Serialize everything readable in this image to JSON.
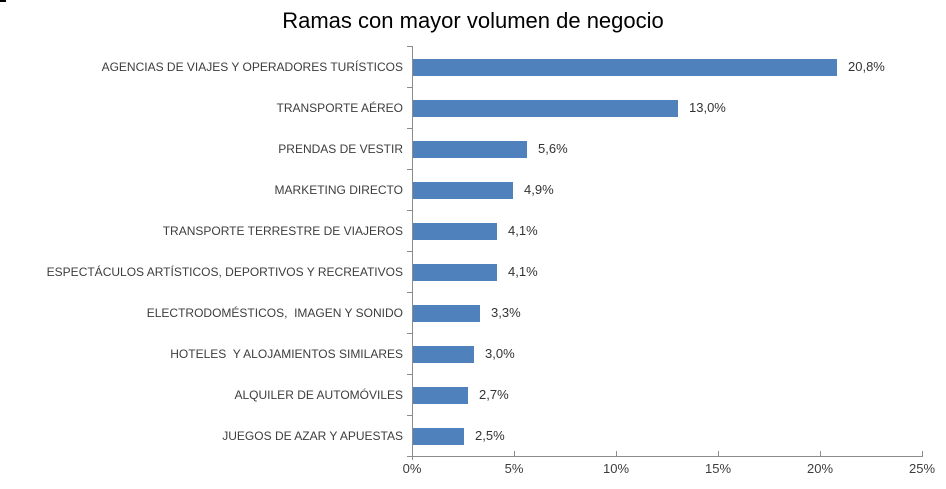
{
  "chart_data": {
    "type": "bar",
    "orientation": "horizontal",
    "title": "Ramas con mayor volumen de negocio",
    "categories": [
      "AGENCIAS DE VIAJES Y OPERADORES TURÍSTICOS",
      "TRANSPORTE AÉREO",
      "PRENDAS DE VESTIR",
      "MARKETING DIRECTO",
      "TRANSPORTE TERRESTRE DE VIAJEROS",
      "ESPECTÁCULOS ARTÍSTICOS, DEPORTIVOS Y RECREATIVOS",
      "ELECTRODOMÉSTICOS,  IMAGEN Y SONIDO",
      "HOTELES  Y ALOJAMIENTOS SIMILARES",
      "ALQUILER DE AUTOMÓVILES",
      "JUEGOS DE AZAR Y APUESTAS"
    ],
    "values": [
      20.8,
      13.0,
      5.6,
      4.9,
      4.1,
      4.1,
      3.3,
      3.0,
      2.7,
      2.5
    ],
    "value_labels": [
      "20,8%",
      "13,0%",
      "5,6%",
      "4,9%",
      "4,1%",
      "4,1%",
      "3,3%",
      "3,0%",
      "2,7%",
      "2,5%"
    ],
    "x_ticks": [
      "0%",
      "5%",
      "10%",
      "15%",
      "20%",
      "25%"
    ],
    "xlim": [
      0,
      25
    ],
    "x_tick_step": 5,
    "xlabel": "",
    "ylabel": "",
    "grid": "off",
    "legend": "none",
    "bar_color": "#4F81BD",
    "axis_color": "#8C8C8C",
    "label_color": "#3D3D3D",
    "title_color": "#000000"
  }
}
